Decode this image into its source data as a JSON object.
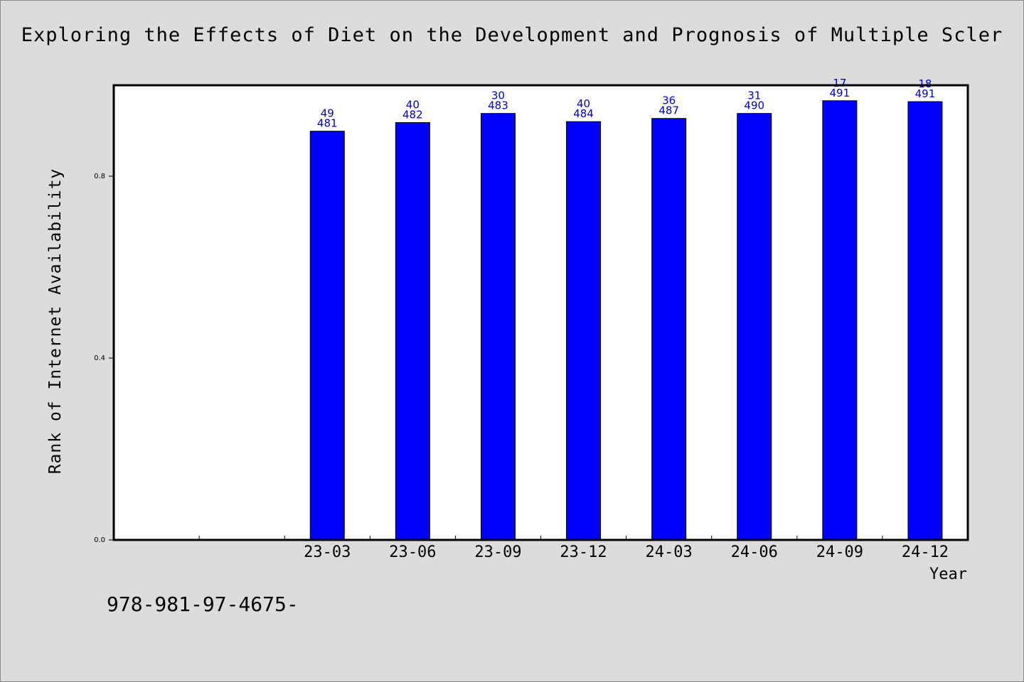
{
  "chart_data": {
    "type": "bar",
    "title": "Exploring the Effects of Diet on the Development and Prognosis of Multiple Scler",
    "xlabel": "Year",
    "ylabel": "Rank of Internet Availability",
    "categories": [
      "",
      "",
      "23-03",
      "23-06",
      "23-09",
      "23-12",
      "24-03",
      "24-06",
      "24-09",
      "24-12"
    ],
    "values": [
      null,
      null,
      0.899,
      0.918,
      0.938,
      0.92,
      0.927,
      0.938,
      0.966,
      0.964
    ],
    "bar_labels": [
      null,
      null,
      [
        "49",
        "481"
      ],
      [
        "40",
        "482"
      ],
      [
        "30",
        "483"
      ],
      [
        "40",
        "484"
      ],
      [
        "36",
        "487"
      ],
      [
        "31",
        "490"
      ],
      [
        "17",
        "491"
      ],
      [
        "18",
        "491"
      ]
    ],
    "yticks": [
      "0.0",
      "0.4",
      "0.8"
    ],
    "ylim": [
      0,
      1.0
    ],
    "grid": false,
    "bar_color": "#0000ff",
    "label_color": "#0000cc"
  },
  "footer": {
    "code": "978-981-97-4675-"
  }
}
